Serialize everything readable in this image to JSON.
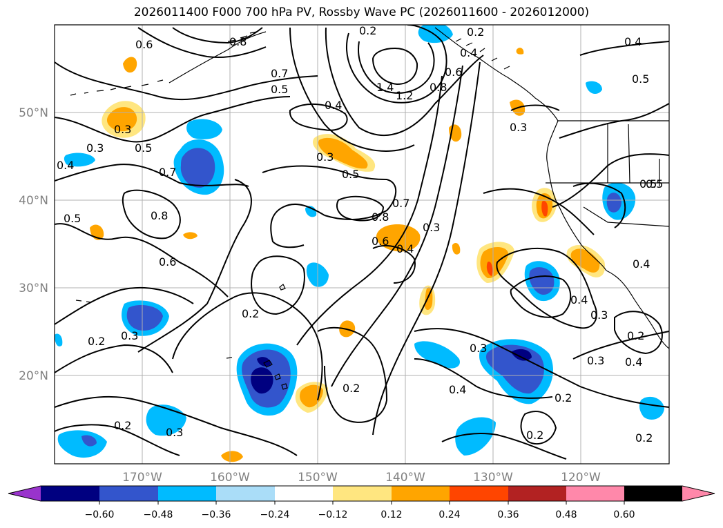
{
  "title": "2026011400 F000 700 hPa PV, Rossby Wave PC (2026011600 - 2026012000)",
  "lat_labels": [
    "50°N",
    "40°N",
    "30°N",
    "20°N"
  ],
  "lon_labels": [
    "170°W",
    "160°W",
    "150°W",
    "140°W",
    "130°W",
    "120°W"
  ],
  "colorbar": {
    "ticks": [
      "−0.60",
      "−0.48",
      "−0.36",
      "−0.24",
      "−0.12",
      "0.12",
      "0.24",
      "0.36",
      "0.48",
      "0.60"
    ],
    "colors": [
      "#9933cc",
      "#000080",
      "#3355cc",
      "#00bbff",
      "#aaddf8",
      "#ffffff",
      "#ffe680",
      "#ffa500",
      "#ff4500",
      "#b22222",
      "#ff88aa"
    ]
  },
  "contour_labels": [
    "0.6",
    "0.8",
    "0.7",
    "0.5",
    "1.4",
    "1.2",
    "0.8",
    "0.6",
    "0.4",
    "0.4",
    "0.5",
    "0.3",
    "0.3",
    "0.5",
    "0.3",
    "0.5",
    "0.4",
    "0.7",
    "0.8",
    "0.5",
    "0.6",
    "0.5",
    "0.8",
    "0.7",
    "0.6",
    "0.4",
    "0.3",
    "0.5",
    "0.4",
    "0.4",
    "0.3",
    "0.2",
    "0.3",
    "0.2",
    "0.2",
    "0.3",
    "0.3",
    "0.4",
    "0.2",
    "0.2",
    "0.3",
    "0.2",
    "0.4",
    "0.2",
    "0.2",
    "0.3",
    "0.4",
    "0.2",
    "0.2"
  ],
  "colors": {
    "grid": "#b0b0b0",
    "contour": "#000000",
    "coast": "#000000"
  }
}
